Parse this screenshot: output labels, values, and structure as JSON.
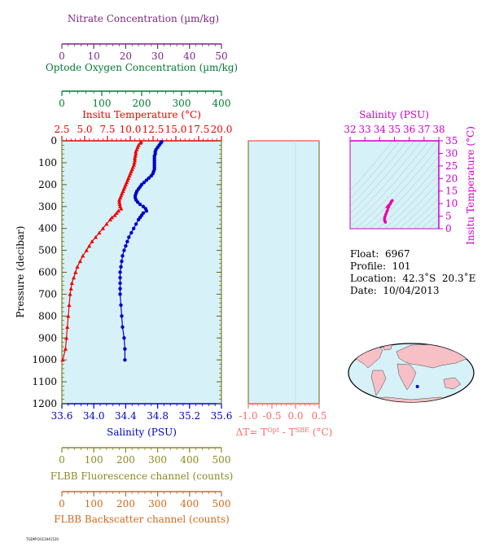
{
  "colors": {
    "nitrate": "#7a2a80",
    "oxygen": "#007a30",
    "temperature": "#ee0000",
    "salinity": "#0000cc",
    "fluorescence": "#8a8a20",
    "backscatter": "#d2691e",
    "delta_t": "#ff6a6a",
    "ts_axis": "#cc00cc",
    "plot_bg": "#d6f1f8",
    "land": "#f6c0c6",
    "frame": "#666600"
  },
  "axes_labels": {
    "nitrate": "Nitrate Concentration (µm/kg)",
    "oxygen": "Optode Oxygen Concentration (µm/kg)",
    "temperature": "Insitu Temperature (°C)",
    "pressure": "Pressure (decibar)",
    "salinity": "Salinity (PSU)",
    "fluorescence": "FLBB Fluorescence channel (counts)",
    "backscatter": "FLBB Backscatter channel (counts)",
    "ts_salinity": "Salinity (PSU)",
    "ts_temperature": "Insitu Temperature (°C)"
  },
  "delta_t_label": {
    "prefix": "ΔT= T",
    "sup1": "Opt",
    "mid": " - T",
    "sup2": "SBE",
    "suffix": " (°C)"
  },
  "float_info": {
    "float": "Float:  6967",
    "profile": "Profile:  101",
    "location": "Location:  42.3˚S  20.3˚E",
    "date": "Date:  10/04/2013"
  },
  "footer_stamp": "TGDMY2013041520",
  "chart_data": {
    "type": "line",
    "pressure_range": [
      0,
      1200
    ],
    "pressure_ticks": [
      0,
      100,
      200,
      300,
      400,
      500,
      600,
      700,
      800,
      900,
      1000,
      1100,
      1200
    ],
    "temperature_range": [
      2.5,
      20.0
    ],
    "temperature_ticks": [
      "2.5",
      "5.0",
      "7.5",
      "10.0",
      "12.5",
      "15.0",
      "17.5",
      "20.0"
    ],
    "salinity_range": [
      33.6,
      35.6
    ],
    "salinity_ticks": [
      "33.6",
      "34.0",
      "34.4",
      "34.8",
      "35.2",
      "35.6"
    ],
    "nitrate_range": [
      0,
      50
    ],
    "nitrate_ticks": [
      "0",
      "10",
      "20",
      "30",
      "40",
      "50"
    ],
    "oxygen_range": [
      0,
      400
    ],
    "oxygen_ticks": [
      "0",
      "100",
      "200",
      "300",
      "400"
    ],
    "fluorescence_range": [
      0,
      500
    ],
    "fluorescence_ticks": [
      "0",
      "100",
      "200",
      "300",
      "400",
      "500"
    ],
    "backscatter_range": [
      0,
      500
    ],
    "backscatter_ticks": [
      "0",
      "100",
      "200",
      "300",
      "400",
      "500"
    ],
    "delta_t_range": [
      -1.0,
      0.5
    ],
    "delta_t_ticks": [
      "-1.0",
      "-0.5",
      "0.0",
      "0.5"
    ],
    "series": [
      {
        "name": "Insitu Temperature",
        "pressure": [
          5,
          10,
          20,
          30,
          40,
          50,
          60,
          70,
          80,
          90,
          100,
          110,
          120,
          130,
          140,
          150,
          160,
          170,
          180,
          190,
          200,
          210,
          220,
          230,
          240,
          250,
          260,
          270,
          280,
          290,
          300,
          310,
          320,
          330,
          340,
          350,
          360,
          380,
          400,
          420,
          440,
          460,
          480,
          500,
          525,
          550,
          575,
          600,
          625,
          650,
          675,
          700,
          750,
          800,
          850,
          900,
          950,
          1000
        ],
        "values": [
          11.2,
          11.1,
          10.9,
          10.8,
          10.7,
          10.6,
          10.6,
          10.55,
          10.5,
          10.5,
          10.45,
          10.4,
          10.3,
          10.2,
          10.1,
          10.0,
          9.9,
          9.8,
          9.7,
          9.6,
          9.5,
          9.4,
          9.3,
          9.2,
          9.1,
          9.0,
          8.9,
          8.8,
          8.8,
          8.85,
          8.9,
          9.0,
          8.7,
          8.5,
          8.3,
          8.0,
          7.8,
          7.4,
          7.0,
          6.6,
          6.2,
          5.8,
          5.5,
          5.2,
          4.8,
          4.5,
          4.2,
          4.0,
          3.8,
          3.6,
          3.5,
          3.4,
          3.3,
          3.2,
          3.1,
          3.0,
          2.9,
          2.6
        ]
      },
      {
        "name": "Salinity",
        "pressure": [
          5,
          10,
          20,
          30,
          40,
          50,
          60,
          70,
          80,
          90,
          100,
          110,
          120,
          130,
          140,
          150,
          160,
          170,
          180,
          190,
          200,
          210,
          220,
          230,
          240,
          250,
          260,
          270,
          280,
          290,
          300,
          310,
          320,
          330,
          340,
          350,
          360,
          380,
          400,
          420,
          440,
          460,
          480,
          500,
          525,
          550,
          575,
          600,
          625,
          650,
          675,
          700,
          750,
          800,
          850,
          900,
          950,
          1000
        ],
        "values": [
          34.85,
          34.84,
          34.82,
          34.8,
          34.78,
          34.77,
          34.77,
          34.76,
          34.76,
          34.76,
          34.76,
          34.76,
          34.76,
          34.76,
          34.75,
          34.74,
          34.72,
          34.69,
          34.66,
          34.63,
          34.6,
          34.58,
          34.56,
          34.54,
          34.53,
          34.52,
          34.52,
          34.53,
          34.55,
          34.58,
          34.62,
          34.65,
          34.66,
          34.62,
          34.6,
          34.58,
          34.56,
          34.53,
          34.5,
          34.47,
          34.44,
          34.42,
          34.4,
          34.38,
          34.36,
          34.35,
          34.34,
          34.33,
          34.33,
          34.33,
          34.33,
          34.33,
          34.34,
          34.35,
          34.36,
          34.38,
          34.39,
          34.39
        ]
      }
    ],
    "ts_diagram": {
      "type": "scatter",
      "salinity_range": [
        32,
        38
      ],
      "salinity_ticks": [
        "32",
        "33",
        "34",
        "35",
        "36",
        "37",
        "38"
      ],
      "temperature_range": [
        0,
        35
      ],
      "temperature_ticks": [
        "0",
        "5",
        "10",
        "15",
        "20",
        "25",
        "30",
        "35"
      ],
      "salinity": [
        34.85,
        34.78,
        34.76,
        34.72,
        34.62,
        34.55,
        34.62,
        34.5,
        34.42,
        34.36,
        34.33,
        34.33,
        34.35,
        34.39
      ],
      "temperature": [
        11.2,
        10.7,
        10.45,
        9.9,
        9.3,
        8.85,
        8.9,
        7.0,
        5.8,
        4.8,
        4.0,
        3.4,
        3.1,
        2.6
      ]
    },
    "location_marker": {
      "lat": -42.3,
      "lon": 20.3
    }
  }
}
